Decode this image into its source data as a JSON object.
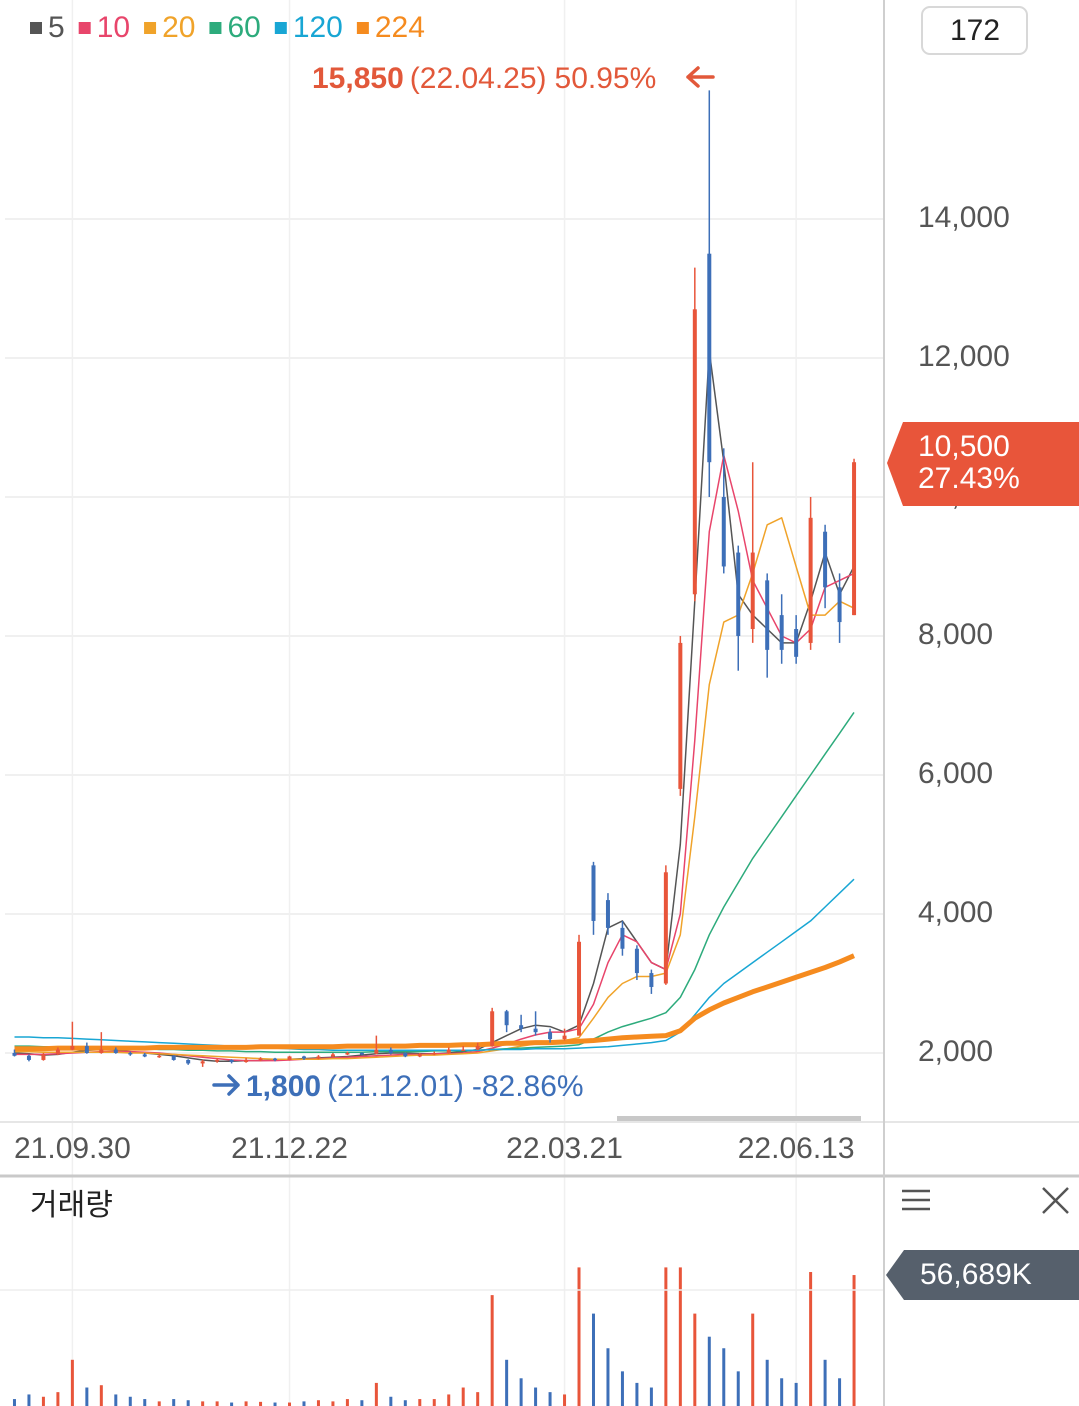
{
  "chart_data": {
    "type": "candlestick",
    "series": [
      {
        "name": "5",
        "color": "#555555",
        "width": 1.5,
        "values": [
          2000,
          1990,
          1970,
          1980,
          2010,
          2040,
          2050,
          2040,
          2020,
          2000,
          1980,
          1960,
          1930,
          1900,
          1880,
          1880,
          1890,
          1890,
          1900,
          1910,
          1920,
          1930,
          1940,
          1950,
          1970,
          1990,
          2000,
          2000,
          1990,
          1990,
          2000,
          2020,
          2050,
          2150,
          2250,
          2350,
          2400,
          2380,
          2300,
          2400,
          3000,
          3800,
          3900,
          3600,
          3300,
          3200,
          5000,
          8500,
          12100,
          10500,
          8600,
          8300,
          8100,
          7900,
          7900,
          8500,
          9200,
          8600,
          9000
        ]
      },
      {
        "name": "10",
        "color": "#e8456b",
        "width": 1.5,
        "values": [
          1980,
          1980,
          1980,
          1990,
          2000,
          2010,
          2020,
          2020,
          2020,
          2010,
          2000,
          1980,
          1960,
          1940,
          1920,
          1900,
          1890,
          1890,
          1890,
          1900,
          1910,
          1920,
          1930,
          1940,
          1950,
          1960,
          1970,
          1980,
          1980,
          1990,
          1990,
          2000,
          2020,
          2070,
          2130,
          2200,
          2260,
          2300,
          2300,
          2350,
          2700,
          3300,
          3700,
          3600,
          3300,
          3200,
          4000,
          6500,
          9500,
          10600,
          9800,
          8800,
          8400,
          8000,
          7900,
          8100,
          8700,
          8800,
          8900
        ]
      },
      {
        "name": "20",
        "color": "#f0a32a",
        "width": 1.5,
        "values": [
          2020,
          2020,
          2010,
          2010,
          2010,
          2010,
          2010,
          2010,
          2000,
          2000,
          1990,
          1980,
          1970,
          1960,
          1950,
          1940,
          1930,
          1920,
          1910,
          1910,
          1910,
          1910,
          1920,
          1920,
          1930,
          1940,
          1950,
          1960,
          1970,
          1970,
          1980,
          1990,
          2000,
          2030,
          2060,
          2100,
          2130,
          2160,
          2180,
          2220,
          2500,
          2800,
          3000,
          3100,
          3100,
          3150,
          3700,
          5400,
          7300,
          8200,
          8300,
          8900,
          9600,
          9700,
          9000,
          8300,
          8300,
          8500,
          8400
        ]
      },
      {
        "name": "60",
        "color": "#2dab7c",
        "width": 1.5,
        "values": [
          2100,
          2100,
          2090,
          2090,
          2080,
          2080,
          2070,
          2070,
          2060,
          2060,
          2050,
          2050,
          2040,
          2040,
          2030,
          2030,
          2020,
          2020,
          2010,
          2010,
          2010,
          2010,
          2010,
          2010,
          2010,
          2020,
          2020,
          2020,
          2020,
          2030,
          2030,
          2030,
          2040,
          2050,
          2060,
          2070,
          2080,
          2090,
          2100,
          2120,
          2200,
          2300,
          2380,
          2440,
          2500,
          2580,
          2800,
          3200,
          3700,
          4100,
          4450,
          4800,
          5100,
          5400,
          5700,
          6000,
          6300,
          6600,
          6900
        ]
      },
      {
        "name": "120",
        "color": "#18a6d4",
        "width": 1.5,
        "values": [
          2230,
          2230,
          2220,
          2220,
          2210,
          2200,
          2190,
          2180,
          2170,
          2160,
          2150,
          2140,
          2130,
          2120,
          2110,
          2100,
          2090,
          2080,
          2070,
          2060,
          2050,
          2050,
          2040,
          2040,
          2040,
          2040,
          2040,
          2040,
          2040,
          2040,
          2040,
          2040,
          2040,
          2050,
          2050,
          2050,
          2060,
          2060,
          2060,
          2070,
          2080,
          2090,
          2110,
          2130,
          2150,
          2180,
          2300,
          2550,
          2800,
          3000,
          3150,
          3300,
          3450,
          3600,
          3750,
          3900,
          4100,
          4300,
          4500
        ]
      },
      {
        "name": "224",
        "color": "#f58b1f",
        "width": 5,
        "values": [
          2060,
          2060,
          2060,
          2070,
          2070,
          2070,
          2070,
          2070,
          2070,
          2070,
          2080,
          2080,
          2080,
          2080,
          2080,
          2080,
          2080,
          2090,
          2090,
          2090,
          2090,
          2090,
          2090,
          2100,
          2100,
          2100,
          2100,
          2100,
          2110,
          2110,
          2110,
          2120,
          2120,
          2130,
          2140,
          2140,
          2150,
          2150,
          2160,
          2170,
          2180,
          2200,
          2220,
          2230,
          2240,
          2250,
          2320,
          2500,
          2620,
          2720,
          2800,
          2880,
          2950,
          3020,
          3090,
          3160,
          3230,
          3310,
          3400
        ]
      }
    ],
    "candles": {
      "up_color": "#e8553a",
      "down_color": "#3d6fb8",
      "open": [
        2000,
        1960,
        1900,
        1980,
        2050,
        2100,
        2000,
        2050,
        2000,
        1980,
        1950,
        1960,
        1900,
        1850,
        1880,
        1900,
        1870,
        1900,
        1920,
        1900,
        1950,
        1920,
        1950,
        1980,
        2000,
        1990,
        2050,
        2000,
        1950,
        1980,
        2000,
        2050,
        2050,
        2100,
        2600,
        2400,
        2350,
        2300,
        2200,
        2250,
        4700,
        4200,
        3800,
        3500,
        3150,
        3000,
        5800,
        8600,
        13500,
        10000,
        9200,
        8100,
        8800,
        8300,
        8100,
        7900,
        9500,
        8700,
        8300
      ],
      "high": [
        2050,
        1980,
        2000,
        2080,
        2450,
        2150,
        2300,
        2080,
        2020,
        2000,
        1990,
        1970,
        1910,
        1900,
        1920,
        1910,
        1930,
        1940,
        1930,
        1960,
        1960,
        1970,
        2000,
        2020,
        2010,
        2250,
        2080,
        2010,
        2000,
        2020,
        2080,
        2100,
        2150,
        2650,
        2620,
        2550,
        2600,
        2350,
        2350,
        3700,
        4750,
        4300,
        3900,
        3550,
        3200,
        4700,
        8000,
        13300,
        15850,
        10700,
        9300,
        10500,
        8900,
        8600,
        8300,
        10000,
        9600,
        8900,
        10550
      ],
      "low": [
        1950,
        1880,
        1890,
        1970,
        2040,
        1990,
        1990,
        1990,
        1960,
        1940,
        1930,
        1890,
        1830,
        1800,
        1860,
        1850,
        1860,
        1880,
        1880,
        1890,
        1900,
        1910,
        1940,
        1970,
        1970,
        1980,
        1980,
        1940,
        1940,
        1970,
        1990,
        2030,
        2040,
        2090,
        2300,
        2300,
        2250,
        2150,
        2180,
        2250,
        3700,
        3700,
        3400,
        3050,
        2850,
        2980,
        5700,
        8500,
        10000,
        8900,
        7500,
        7900,
        7400,
        7600,
        7600,
        7800,
        8400,
        7900,
        8300
      ],
      "close": [
        1960,
        1900,
        1980,
        2050,
        2100,
        2000,
        2050,
        2000,
        1980,
        1950,
        1960,
        1900,
        1850,
        1880,
        1900,
        1870,
        1900,
        1920,
        1900,
        1950,
        1920,
        1950,
        1980,
        2000,
        1990,
        2050,
        2000,
        1950,
        1980,
        2000,
        2050,
        2050,
        2100,
        2600,
        2400,
        2350,
        2300,
        2200,
        2250,
        3600,
        3900,
        3800,
        3500,
        3150,
        2950,
        4600,
        7900,
        12700,
        10500,
        9000,
        8000,
        9200,
        7800,
        7800,
        7700,
        9700,
        8700,
        8200,
        10500
      ]
    },
    "xlim": [
      -1,
      60
    ],
    "xticks": [
      {
        "value": 4,
        "label": "21.09.30"
      },
      {
        "value": 19,
        "label": "21.12.22"
      },
      {
        "value": 38,
        "label": "22.03.21"
      },
      {
        "value": 54,
        "label": "22.06.13"
      }
    ],
    "ylim": [
      1108,
      17150
    ],
    "yticks": [
      {
        "value": 2000,
        "label": "2,000"
      },
      {
        "value": 4000,
        "label": "4,000"
      },
      {
        "value": 6000,
        "label": "6,000"
      },
      {
        "value": 8000,
        "label": "8,000"
      },
      {
        "value": 10000,
        "label": "10,000"
      },
      {
        "value": 12000,
        "label": "12,000"
      },
      {
        "value": 14000,
        "label": "14,000"
      }
    ],
    "grid": true,
    "max_note": {
      "price": "15,850",
      "date": "(22.04.25)",
      "change": "50.95%"
    },
    "min_note": {
      "price": "1,800",
      "date": "(21.12.01)",
      "change": "-82.86%"
    },
    "price_tag": {
      "price": "10,500",
      "change": "27.43%"
    },
    "volume": {
      "title": "거래량",
      "tag": "56,689K",
      "ylim": [
        0,
        98700
      ],
      "values": [
        3000,
        5000,
        4000,
        6000,
        20000,
        8000,
        9000,
        5000,
        4000,
        3000,
        2000,
        3000,
        2500,
        2000,
        2000,
        1500,
        2000,
        1800,
        1500,
        1500,
        2000,
        2500,
        2000,
        3000,
        2500,
        10000,
        4000,
        2500,
        3000,
        3000,
        5000,
        8000,
        6000,
        48000,
        20000,
        12000,
        8000,
        6000,
        5000,
        60000,
        40000,
        25000,
        15000,
        10000,
        8000,
        60000,
        60000,
        40000,
        30000,
        25000,
        15000,
        40000,
        20000,
        12000,
        10000,
        58000,
        20000,
        12000,
        56689
      ]
    }
  },
  "toolbar": {
    "count": "172"
  }
}
